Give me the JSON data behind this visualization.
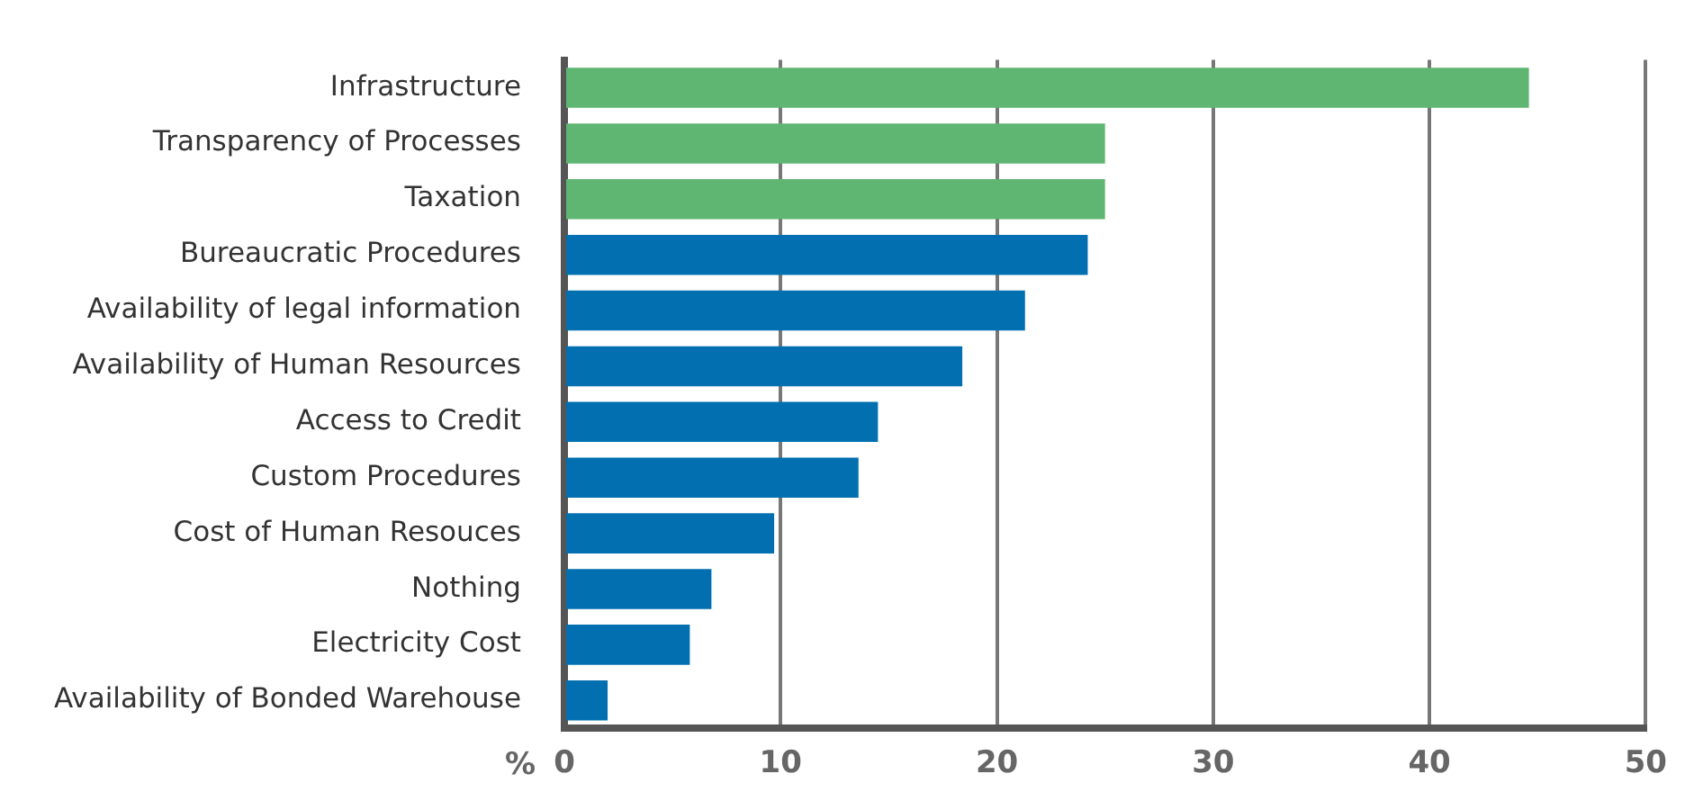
{
  "chart_data": {
    "type": "bar",
    "orientation": "horizontal",
    "xlabel": "%",
    "categories": [
      "Infrastructure",
      "Transparency of Processes",
      "Taxation",
      "Bureaucratic Procedures",
      "Availability of legal information",
      "Availability of Human Resources",
      "Access to Credit",
      "Custom Procedures",
      "Cost of Human Resouces",
      "Nothing",
      "Electricity Cost",
      "Availability of Bonded Warehouse"
    ],
    "values": [
      44.6,
      25,
      25,
      24.2,
      21.3,
      18.4,
      14.5,
      13.6,
      9.7,
      6.8,
      5.8,
      2.0
    ],
    "colors": [
      "#5fb672",
      "#5fb672",
      "#5fb672",
      "#0270b0",
      "#0270b0",
      "#0270b0",
      "#0270b0",
      "#0270b0",
      "#0270b0",
      "#0270b0",
      "#0270b0",
      "#0270b0"
    ],
    "xlim": [
      0,
      50
    ],
    "xticks": [
      0,
      10,
      20,
      30,
      40,
      50
    ],
    "grid": "x",
    "legend": false
  }
}
